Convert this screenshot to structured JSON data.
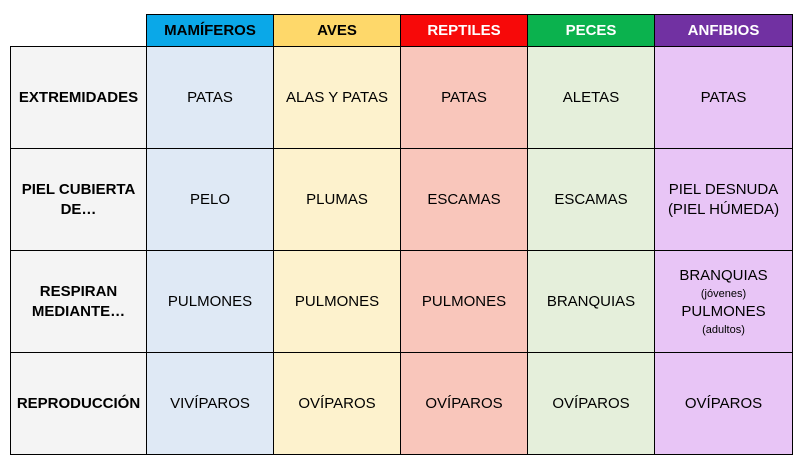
{
  "colors": {
    "mamiferos": "#0aa8e8",
    "aves": "#fed86a",
    "reptiles": "#f70909",
    "peces": "#0bb24e",
    "anfibios": "#7131a2"
  },
  "headers": [
    "MAMÍFEROS",
    "AVES",
    "REPTILES",
    "PECES",
    "ANFIBIOS"
  ],
  "rows": [
    {
      "label_lines": [
        "EXTREMIDADES"
      ],
      "cells": [
        "PATAS",
        "ALAS Y PATAS",
        "PATAS",
        "ALETAS",
        "PATAS"
      ]
    },
    {
      "label_lines": [
        "PIEL CUBIERTA",
        "DE…"
      ],
      "cells": [
        "PELO",
        "PLUMAS",
        "ESCAMAS",
        "ESCAMAS"
      ],
      "anfibios_lines": [
        "PIEL DESNUDA",
        "(PIEL HÚMEDA)"
      ]
    },
    {
      "label_lines": [
        "RESPIRAN",
        "MEDIANTE…"
      ],
      "cells": [
        "PULMONES",
        "PULMONES",
        "PULMONES",
        "BRANQUIAS"
      ],
      "anfibios_parts": {
        "first": "BRANQUIAS",
        "first_note": "(jóvenes)",
        "second": "PULMONES",
        "second_note": "(adultos)"
      }
    },
    {
      "label_lines": [
        "REPRODUCCIÓN"
      ],
      "cells": [
        "VIVÍPAROS",
        "OVÍPAROS",
        "OVÍPAROS",
        "OVÍPAROS",
        "OVÍPAROS"
      ]
    }
  ]
}
